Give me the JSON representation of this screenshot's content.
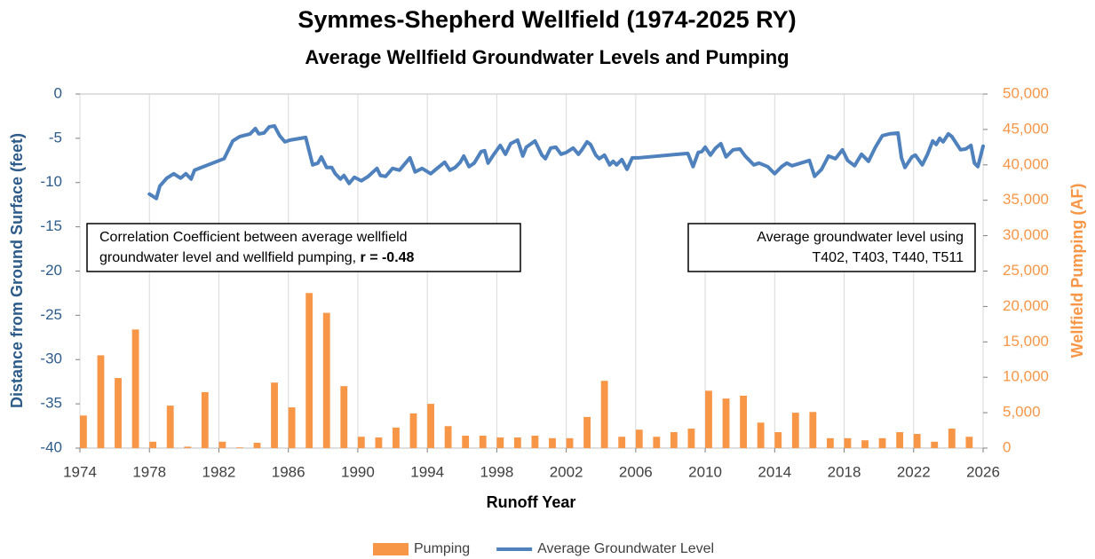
{
  "chart_data": {
    "type": "bar-line",
    "title": "Symmes-Shepherd Wellfield (1974-2025 RY)",
    "subtitle": "Average Wellfield Groundwater Levels and Pumping",
    "x_label": "Runoff Year",
    "y_label": "Distance from Ground Surface (feet)",
    "y2_label": "Wellfield Pumping (AF)",
    "xlim": [
      1974,
      2026
    ],
    "xticks": [
      1974,
      1978,
      1982,
      1986,
      1990,
      1994,
      1998,
      2002,
      2006,
      2010,
      2014,
      2018,
      2022,
      2026
    ],
    "ylim": [
      -40,
      0
    ],
    "yticks": [
      0,
      -5,
      -10,
      -15,
      -20,
      -25,
      -30,
      -35,
      -40
    ],
    "y2lim": [
      0,
      50000
    ],
    "y2ticks": [
      0,
      {
        "value": 5000,
        "label": "5,000"
      },
      {
        "value": 10000,
        "label": "10,000"
      },
      {
        "value": 15000,
        "label": "15,000"
      },
      {
        "value": 20000,
        "label": "20,000"
      },
      {
        "value": 25000,
        "label": "25,000"
      },
      {
        "value": 30000,
        "label": "30,000"
      },
      {
        "value": 35000,
        "label": "35,000"
      },
      {
        "value": 40000,
        "label": "40,000"
      },
      {
        "value": 45000,
        "label": "45,000"
      },
      {
        "value": 50000,
        "label": "50,000"
      }
    ],
    "grid": true,
    "legend": "bottom",
    "annotations": [
      {
        "lines": [
          "Correlation Coefficient between average wellfield",
          "groundwater level and wellfield pumping, "
        ],
        "bold": "r = -0.48"
      },
      {
        "lines": [
          "Average groundwater level using",
          "T402, T403, T440, T511"
        ]
      }
    ],
    "series": [
      {
        "name": "Pumping",
        "color": "#f79646",
        "axis": "y2",
        "kind": "bar",
        "x": [
          1974,
          1975,
          1976,
          1977,
          1978,
          1979,
          1980,
          1981,
          1982,
          1983,
          1984,
          1985,
          1986,
          1987,
          1988,
          1989,
          1990,
          1991,
          1992,
          1993,
          1994,
          1995,
          1996,
          1997,
          1998,
          1999,
          2000,
          2001,
          2002,
          2003,
          2004,
          2005,
          2006,
          2007,
          2008,
          2009,
          2010,
          2011,
          2012,
          2013,
          2014,
          2015,
          2016,
          2017,
          2018,
          2019,
          2020,
          2021,
          2022,
          2023,
          2024,
          2025
        ],
        "values": [
          4600,
          13100,
          9900,
          16750,
          900,
          6000,
          200,
          7900,
          900,
          100,
          750,
          9250,
          5750,
          21900,
          19100,
          8750,
          1600,
          1500,
          2900,
          4900,
          6250,
          3100,
          1750,
          1750,
          1500,
          1500,
          1750,
          1400,
          1400,
          4400,
          9500,
          1600,
          2600,
          1600,
          2250,
          2750,
          8100,
          7000,
          7400,
          3600,
          2250,
          5000,
          5100,
          1400,
          1400,
          1100,
          1400,
          2250,
          2000,
          900,
          2750,
          1600
        ]
      },
      {
        "name": "Average Groundwater Level",
        "color": "#4f81bd",
        "kind": "line",
        "x": [
          1978.0,
          1978.4,
          1978.6,
          1979.0,
          1979.4,
          1979.8,
          1980.1,
          1980.4,
          1980.6,
          1982.3,
          1982.8,
          1983.2,
          1983.8,
          1984.1,
          1984.3,
          1984.6,
          1984.9,
          1985.2,
          1985.5,
          1985.8,
          1986.1,
          1987.0,
          1987.4,
          1987.7,
          1987.9,
          1988.2,
          1988.5,
          1988.7,
          1989.0,
          1989.2,
          1989.5,
          1989.8,
          1990.2,
          1990.6,
          1991.1,
          1991.3,
          1991.6,
          1992.0,
          1992.4,
          1993.0,
          1993.3,
          1993.7,
          1994.2,
          1994.5,
          1995.0,
          1995.3,
          1995.6,
          1995.9,
          1996.1,
          1996.4,
          1996.7,
          1997.1,
          1997.3,
          1997.5,
          1997.8,
          1998.2,
          1998.5,
          1998.8,
          1999.2,
          1999.5,
          1999.7,
          2000.2,
          2000.6,
          2000.8,
          2001.1,
          2001.4,
          2001.7,
          2002.0,
          2002.4,
          2002.7,
          2002.9,
          2003.2,
          2003.4,
          2003.7,
          2003.9,
          2004.2,
          2004.5,
          2004.7,
          2004.9,
          2005.2,
          2005.5,
          2005.8,
          2006.2,
          2009.0,
          2009.3,
          2009.6,
          2009.8,
          2010.0,
          2010.3,
          2010.6,
          2010.9,
          2011.2,
          2011.6,
          2012.0,
          2012.3,
          2012.8,
          2013.1,
          2013.6,
          2014.0,
          2014.4,
          2014.7,
          2015.0,
          2016.0,
          2016.3,
          2016.7,
          2017.1,
          2017.5,
          2017.9,
          2018.2,
          2018.6,
          2019.0,
          2019.4,
          2019.8,
          2020.2,
          2020.6,
          2021.1,
          2021.3,
          2021.5,
          2021.9,
          2022.1,
          2022.5,
          2022.8,
          2023.1,
          2023.3,
          2023.5,
          2023.7,
          2024.0,
          2024.2,
          2024.5,
          2024.7,
          2025.0,
          2025.3,
          2025.5,
          2025.7,
          2026.0
        ],
        "values": [
          -11.3,
          -11.8,
          -10.4,
          -9.5,
          -9.0,
          -9.5,
          -9.0,
          -9.6,
          -8.6,
          -7.3,
          -5.3,
          -4.8,
          -4.5,
          -3.9,
          -4.5,
          -4.4,
          -3.7,
          -3.6,
          -4.7,
          -5.4,
          -5.2,
          -4.9,
          -8.0,
          -7.8,
          -7.1,
          -8.3,
          -8.3,
          -9.0,
          -9.6,
          -9.2,
          -10.1,
          -9.4,
          -9.8,
          -9.3,
          -8.4,
          -9.2,
          -9.3,
          -8.4,
          -8.6,
          -7.2,
          -8.8,
          -8.4,
          -9.0,
          -8.5,
          -7.7,
          -8.6,
          -8.3,
          -7.7,
          -7.0,
          -8.2,
          -7.8,
          -6.5,
          -6.4,
          -7.8,
          -6.9,
          -5.8,
          -6.8,
          -5.6,
          -5.2,
          -7.0,
          -6.0,
          -5.3,
          -6.9,
          -7.3,
          -6.1,
          -6.0,
          -6.8,
          -6.6,
          -6.1,
          -6.8,
          -6.3,
          -5.4,
          -5.7,
          -6.9,
          -7.3,
          -6.9,
          -8.0,
          -7.6,
          -8.0,
          -7.4,
          -8.5,
          -7.2,
          -7.2,
          -6.7,
          -8.2,
          -6.6,
          -6.5,
          -6.0,
          -6.9,
          -6.1,
          -5.6,
          -7.1,
          -6.3,
          -6.2,
          -7.0,
          -8.0,
          -7.8,
          -8.2,
          -9.0,
          -8.2,
          -7.8,
          -8.1,
          -7.5,
          -9.3,
          -8.5,
          -7.0,
          -7.3,
          -6.3,
          -7.5,
          -8.1,
          -6.8,
          -7.6,
          -6.0,
          -4.7,
          -4.5,
          -4.4,
          -7.2,
          -8.3,
          -7.1,
          -6.9,
          -8.0,
          -6.8,
          -5.3,
          -5.7,
          -5.0,
          -5.4,
          -4.5,
          -4.8,
          -5.7,
          -6.3,
          -6.2,
          -5.8,
          -7.8,
          -8.2,
          -5.9
        ]
      }
    ]
  }
}
